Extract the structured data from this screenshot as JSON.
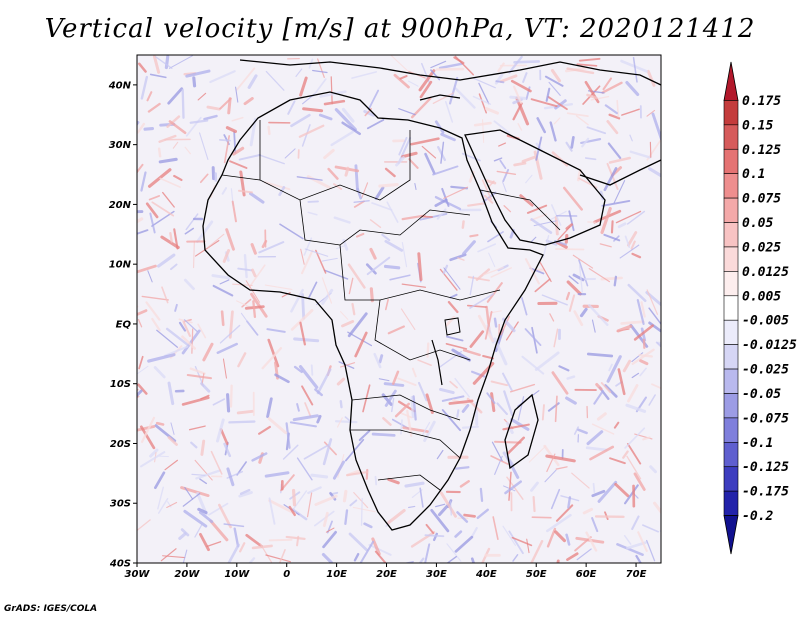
{
  "title": "Vertical velocity [m/s] at 900hPa, VT: 2020121412",
  "credit": "GrADS: IGES/COLA",
  "map": {
    "lat_labels": [
      "40N",
      "30N",
      "20N",
      "10N",
      "EQ",
      "10S",
      "20S",
      "30S",
      "40S"
    ],
    "lon_labels": [
      "30W",
      "20W",
      "10W",
      "0",
      "10E",
      "20E",
      "30E",
      "40E",
      "50E",
      "60E",
      "70E"
    ],
    "lon_range": [
      -30,
      75
    ],
    "lat_range": [
      -40,
      45
    ]
  },
  "colorbar": {
    "labels": [
      "0.175",
      "0.15",
      "0.125",
      "0.1",
      "0.075",
      "0.05",
      "0.025",
      "0.0125",
      "0.005",
      "-0.005",
      "-0.0125",
      "-0.025",
      "-0.05",
      "-0.075",
      "-0.1",
      "-0.125",
      "-0.175",
      "-0.2"
    ],
    "colors": [
      "#b2182b",
      "#c43c3c",
      "#d65b5b",
      "#e57373",
      "#ee8e8e",
      "#f4a9a9",
      "#f8c3c3",
      "#fbdada",
      "#fdeeee",
      "#ffffff",
      "#ececfb",
      "#d6d6f5",
      "#b9b9ee",
      "#9c9ce5",
      "#7f7fdc",
      "#5f5fcf",
      "#3d3dbf",
      "#2222aa",
      "#11118f"
    ]
  }
}
